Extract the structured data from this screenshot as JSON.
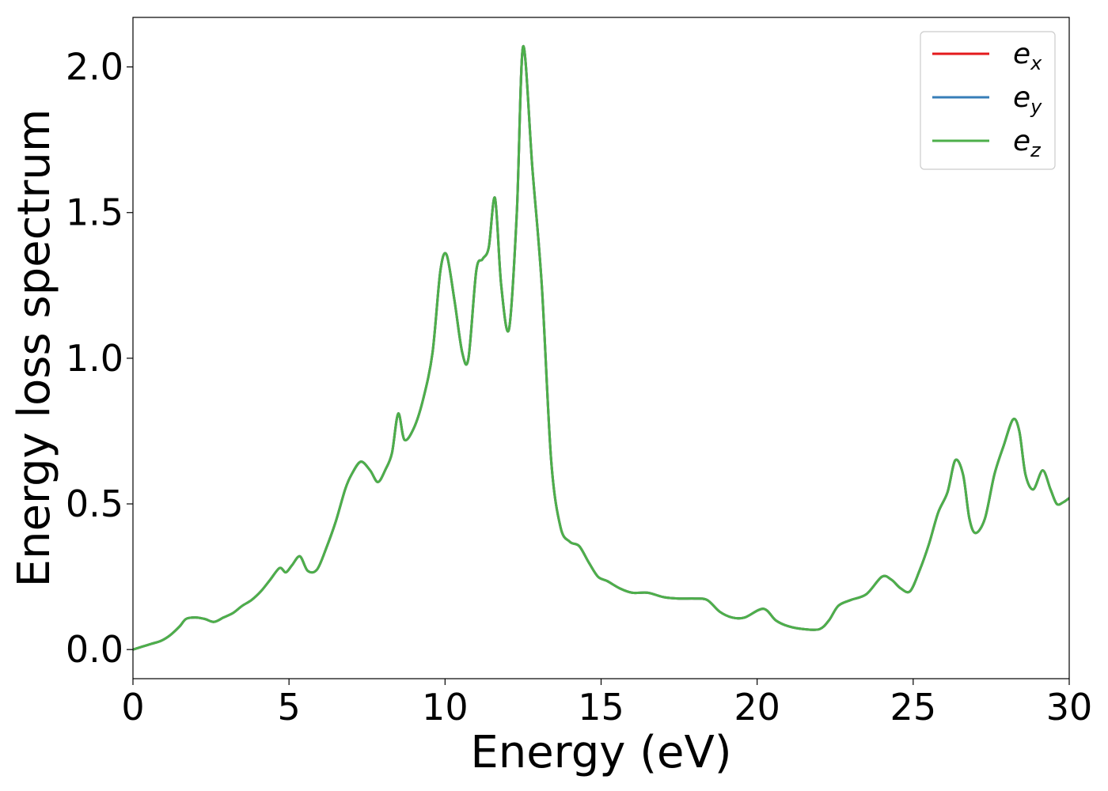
{
  "chart_data": {
    "type": "line",
    "xlabel": "Energy (eV)",
    "ylabel": "Energy loss spectrum",
    "xlim": [
      0,
      30
    ],
    "ylim": [
      -0.1,
      2.17
    ],
    "xticks": [
      0,
      5,
      10,
      15,
      20,
      25,
      30
    ],
    "xtick_labels": [
      "0",
      "5",
      "10",
      "15",
      "20",
      "25",
      "30"
    ],
    "yticks": [
      0.0,
      0.5,
      1.0,
      1.5,
      2.0
    ],
    "ytick_labels": [
      "0.0",
      "0.5",
      "1.0",
      "1.5",
      "2.0"
    ],
    "grid": false,
    "legend_position": "top-right",
    "x": [
      0,
      0.3,
      0.6,
      0.9,
      1.2,
      1.5,
      1.7,
      2.0,
      2.3,
      2.6,
      2.9,
      3.2,
      3.5,
      3.8,
      4.1,
      4.4,
      4.7,
      4.9,
      5.1,
      5.35,
      5.6,
      5.9,
      6.2,
      6.5,
      6.8,
      7.0,
      7.3,
      7.6,
      7.85,
      8.1,
      8.3,
      8.5,
      8.7,
      9.0,
      9.3,
      9.6,
      9.85,
      10.05,
      10.3,
      10.55,
      10.75,
      11.0,
      11.2,
      11.4,
      11.6,
      11.8,
      12.05,
      12.3,
      12.5,
      12.8,
      13.1,
      13.4,
      13.7,
      14.0,
      14.3,
      14.6,
      14.9,
      15.2,
      15.6,
      16.0,
      16.5,
      17.0,
      17.5,
      18.0,
      18.4,
      18.8,
      19.2,
      19.6,
      20.2,
      20.6,
      21.0,
      21.5,
      22.0,
      22.3,
      22.6,
      23.0,
      23.5,
      24.0,
      24.3,
      24.6,
      24.9,
      25.2,
      25.5,
      25.8,
      26.1,
      26.35,
      26.6,
      26.8,
      27.0,
      27.3,
      27.6,
      27.9,
      28.2,
      28.4,
      28.6,
      28.85,
      29.15,
      29.4,
      29.6,
      29.8,
      30.0
    ],
    "y": [
      0.0,
      0.01,
      0.02,
      0.03,
      0.05,
      0.08,
      0.105,
      0.11,
      0.105,
      0.095,
      0.11,
      0.125,
      0.15,
      0.17,
      0.2,
      0.24,
      0.28,
      0.265,
      0.29,
      0.32,
      0.27,
      0.275,
      0.35,
      0.44,
      0.55,
      0.6,
      0.645,
      0.615,
      0.575,
      0.62,
      0.675,
      0.81,
      0.72,
      0.76,
      0.86,
      1.02,
      1.3,
      1.355,
      1.2,
      1.02,
      1.0,
      1.3,
      1.34,
      1.38,
      1.55,
      1.25,
      1.1,
      1.5,
      2.07,
      1.65,
      1.25,
      0.65,
      0.42,
      0.37,
      0.355,
      0.3,
      0.25,
      0.235,
      0.21,
      0.195,
      0.195,
      0.18,
      0.175,
      0.175,
      0.17,
      0.13,
      0.11,
      0.11,
      0.14,
      0.1,
      0.08,
      0.07,
      0.07,
      0.1,
      0.15,
      0.17,
      0.19,
      0.25,
      0.24,
      0.21,
      0.2,
      0.27,
      0.36,
      0.47,
      0.54,
      0.65,
      0.6,
      0.45,
      0.4,
      0.45,
      0.6,
      0.7,
      0.79,
      0.75,
      0.6,
      0.55,
      0.615,
      0.55,
      0.5,
      0.505,
      0.52
    ],
    "series": [
      {
        "name": "e_x",
        "label_base": "e",
        "label_sub": "x",
        "color": "#e41a1c"
      },
      {
        "name": "e_y",
        "label_base": "e",
        "label_sub": "y",
        "color": "#377eb8"
      },
      {
        "name": "e_z",
        "label_base": "e",
        "label_sub": "z",
        "color": "#4daf4a"
      }
    ]
  }
}
